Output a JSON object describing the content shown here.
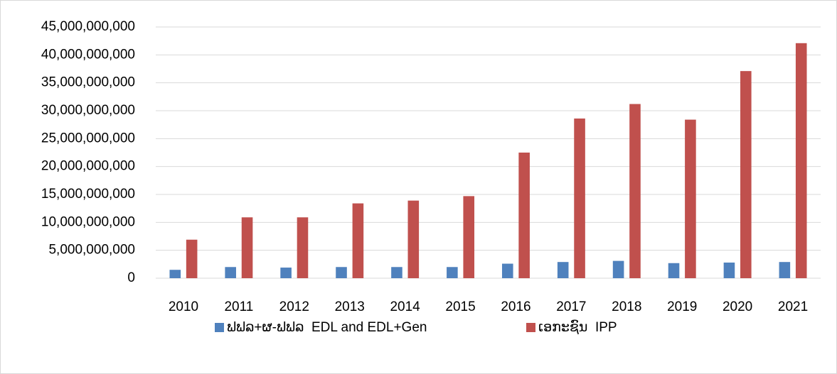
{
  "chart_data": {
    "type": "bar",
    "categories": [
      "2010",
      "2011",
      "2012",
      "2013",
      "2014",
      "2015",
      "2016",
      "2017",
      "2018",
      "2019",
      "2020",
      "2021"
    ],
    "series": [
      {
        "name": "ຟຟລ+ຜ-ຟຟລ  EDL and EDL+Gen",
        "color": "#4f81bd",
        "values": [
          1500000000,
          2000000000,
          1900000000,
          2000000000,
          2000000000,
          2000000000,
          2600000000,
          2900000000,
          3100000000,
          2700000000,
          2800000000,
          2900000000
        ]
      },
      {
        "name": "ເອກະຊົນ  IPP",
        "color": "#c0504d",
        "values": [
          6900000000,
          10900000000,
          10900000000,
          13400000000,
          13900000000,
          14700000000,
          22500000000,
          28600000000,
          31200000000,
          28400000000,
          37100000000,
          42100000000
        ]
      }
    ],
    "ylim": [
      0,
      45000000000
    ],
    "yticks": [
      0,
      {
        "value": 5000000000,
        "label": "5,000,000,000"
      },
      {
        "value": 10000000000,
        "label": "10,000,000,000"
      },
      {
        "value": 15000000000,
        "label": "15,000,000,000"
      },
      {
        "value": 20000000000,
        "label": "20,000,000,000"
      },
      {
        "value": 25000000000,
        "label": "25,000,000,000"
      },
      {
        "value": 30000000000,
        "label": "30,000,000,000"
      },
      {
        "value": 35000000000,
        "label": "35,000,000,000"
      },
      {
        "value": 40000000000,
        "label": "40,000,000,000"
      },
      {
        "value": 45000000000,
        "label": "45,000,000,000"
      }
    ],
    "grid": true,
    "legend": "bottom"
  }
}
